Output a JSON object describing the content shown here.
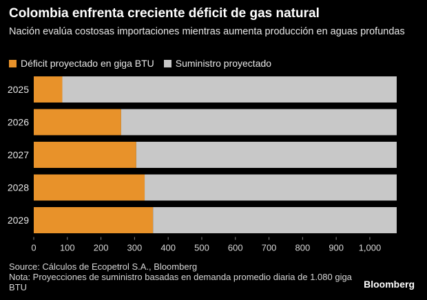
{
  "title": "Colombia enfrenta creciente déficit de gas natural",
  "subtitle": "Nación evalúa costosas importaciones mientras aumenta producción en aguas profundas",
  "legend": [
    {
      "label": "Déficit proyectado en giga BTU",
      "color": "#e8922a"
    },
    {
      "label": "Suministro proyectado",
      "color": "#c8c8c8"
    }
  ],
  "source": "Source: Cálculos de Ecopetrol S.A., Bloomberg",
  "note": "Nota: Proyecciones de suministro basadas en demanda promedio diaria de 1.080 giga BTU",
  "brand": "Bloomberg",
  "chart_data": {
    "type": "bar",
    "orientation": "horizontal",
    "stacked": true,
    "categories": [
      "2025",
      "2026",
      "2027",
      "2028",
      "2029"
    ],
    "series": [
      {
        "name": "Déficit proyectado en giga BTU",
        "color": "#e8922a",
        "values": [
          85,
          260,
          305,
          330,
          355
        ]
      },
      {
        "name": "Suministro proyectado",
        "color": "#c8c8c8",
        "values": [
          995,
          820,
          775,
          750,
          725
        ]
      }
    ],
    "xlim": [
      0,
      1080
    ],
    "xticks": [
      0,
      100,
      200,
      300,
      400,
      500,
      600,
      700,
      800,
      900,
      1000
    ],
    "xtick_labels": [
      "0",
      "100",
      "200",
      "300",
      "400",
      "500",
      "600",
      "700",
      "800",
      "900",
      "1,000"
    ],
    "grid": false,
    "legend_position": "top-left"
  }
}
